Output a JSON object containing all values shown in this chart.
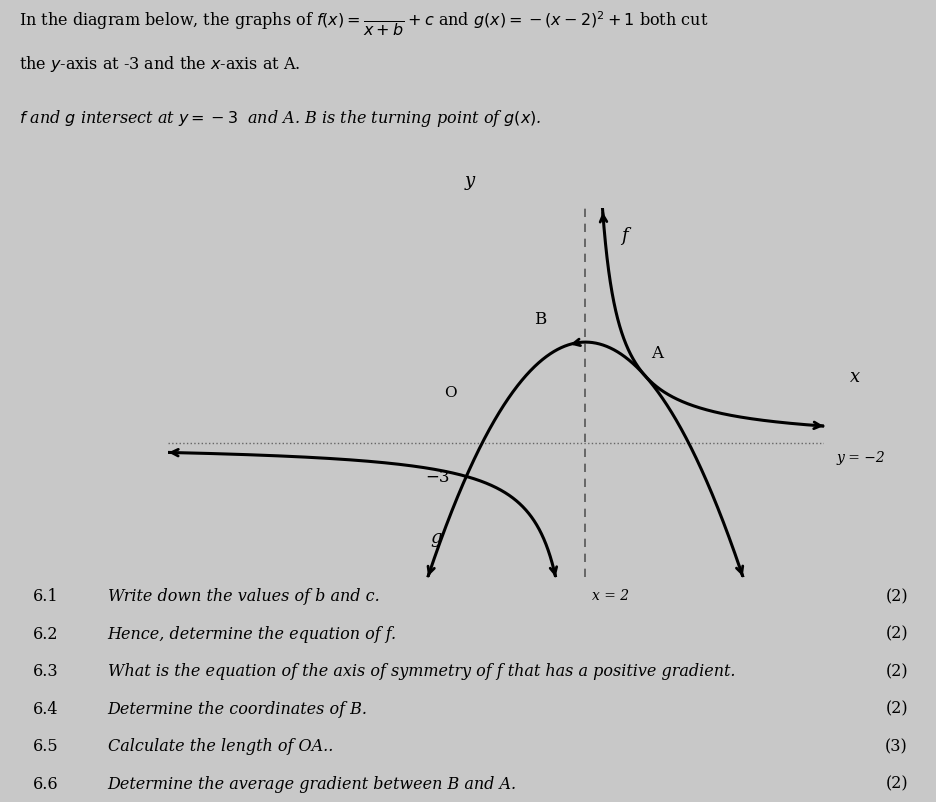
{
  "background_color": "#c8c8c8",
  "xlim": [
    -5.0,
    6.0
  ],
  "ylim": [
    -6.0,
    5.0
  ],
  "x_label": "x",
  "y_label": "y",
  "f_label": "f",
  "g_label": "g",
  "B_label": "B",
  "A_label": "A",
  "O_label": "O",
  "y_eq_neg2_label": "y = −2",
  "x_eq_2_label": "x = 2",
  "neg3_label": "−3",
  "questions": [
    [
      "6.1",
      "Write down the values of b and c.",
      "(2)"
    ],
    [
      "6.2",
      "Hence, determine the equation of f.",
      "(2)"
    ],
    [
      "6.3",
      "What is the equation of the axis of symmetry of f that has a positive gradient.",
      "(2)"
    ],
    [
      "6.4",
      "Determine the coordinates of B.",
      "(2)"
    ],
    [
      "6.5",
      "Calculate the length of OA..",
      "(3)"
    ],
    [
      "6.6",
      "Determine the average gradient between B and A.",
      "(2)"
    ]
  ]
}
